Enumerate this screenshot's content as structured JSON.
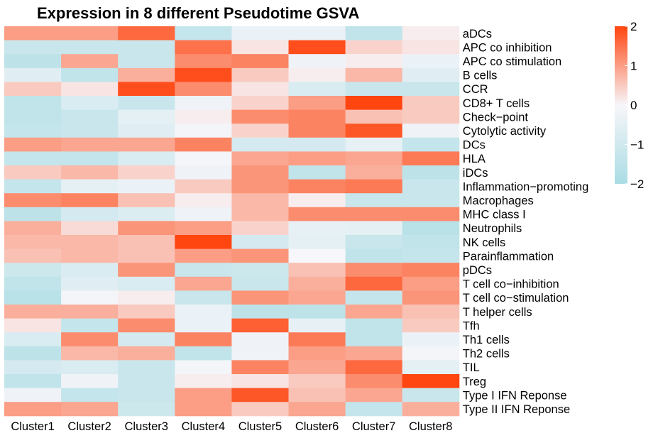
{
  "chart_data": {
    "type": "heatmap",
    "title": "Expression in 8 different Pseudotime GSVA",
    "columns": [
      "Cluster1",
      "Cluster2",
      "Cluster3",
      "Cluster4",
      "Cluster5",
      "Cluster6",
      "Cluster7",
      "Cluster8"
    ],
    "rows": [
      "aDCs",
      "APC co inhibition",
      "APC co stimulation",
      "B cells",
      "CCR",
      "CD8+ T cells",
      "Check−point",
      "Cytolytic activity",
      "DCs",
      "HLA",
      "iDCs",
      "Inflammation−promoting",
      "Macrophages",
      "MHC class I",
      "Neutrophils",
      "NK cells",
      "Parainflammation",
      "pDCs",
      "T cell co−inhibition",
      "T cell co−stimulation",
      "T helper cells",
      "Tfh",
      "Th1 cells",
      "Th2 cells",
      "TIL",
      "Treg",
      "Type I IFN Reponse",
      "Type II IFN Reponse"
    ],
    "values": [
      [
        1.0,
        1.0,
        1.6,
        -1.3,
        -0.3,
        -0.3,
        -1.4,
        0.1
      ],
      [
        -1.2,
        -1.2,
        -1.2,
        1.5,
        0.2,
        1.9,
        0.4,
        0.2
      ],
      [
        -1.5,
        0.9,
        -1.2,
        1.2,
        1.3,
        -0.2,
        0.1,
        -0.3
      ],
      [
        -0.6,
        -1.4,
        0.8,
        1.9,
        0.5,
        0.1,
        0.7,
        -0.6
      ],
      [
        0.5,
        0.2,
        1.9,
        1.2,
        0.2,
        -0.8,
        -1.2,
        -1.2
      ],
      [
        -1.4,
        -0.8,
        -1.2,
        -0.2,
        0.4,
        1.0,
        2.0,
        0.5
      ],
      [
        -1.4,
        -1.2,
        -0.5,
        0.1,
        1.2,
        1.3,
        0.6,
        0.5
      ],
      [
        -1.3,
        -1.2,
        -0.6,
        -0.1,
        0.4,
        1.3,
        1.8,
        -0.2
      ],
      [
        1.0,
        0.9,
        0.9,
        1.3,
        -0.9,
        -0.9,
        -0.4,
        -1.3
      ],
      [
        -1.3,
        -1.3,
        -0.8,
        -0.1,
        0.9,
        1.0,
        0.9,
        1.4
      ],
      [
        0.5,
        0.7,
        0.4,
        -0.2,
        1.1,
        -1.4,
        0.8,
        -1.5
      ],
      [
        -1.3,
        -0.5,
        -0.3,
        0.5,
        1.1,
        1.3,
        1.4,
        -1.2
      ],
      [
        1.2,
        1.3,
        0.6,
        0.1,
        0.7,
        0.1,
        -1.2,
        -1.2
      ],
      [
        -1.5,
        -0.9,
        -0.7,
        -0.2,
        0.7,
        1.2,
        1.2,
        1.2
      ],
      [
        0.8,
        0.3,
        1.1,
        1.0,
        0.4,
        -0.4,
        -0.5,
        -1.6
      ],
      [
        0.7,
        0.7,
        0.6,
        2.0,
        -0.9,
        -0.5,
        -1.2,
        -1.4
      ],
      [
        0.6,
        0.7,
        0.6,
        1.0,
        1.1,
        0.0,
        -1.4,
        -1.3
      ],
      [
        -1.1,
        -0.8,
        1.1,
        -1.2,
        -1.1,
        0.6,
        1.2,
        1.3
      ],
      [
        -1.4,
        -0.6,
        -0.8,
        0.9,
        -1.2,
        0.8,
        1.6,
        1.0
      ],
      [
        -1.6,
        -0.1,
        0.1,
        -1.2,
        1.1,
        0.9,
        -1.3,
        1.1
      ],
      [
        0.8,
        0.8,
        0.5,
        -0.3,
        -1.5,
        -1.5,
        0.9,
        0.6
      ],
      [
        0.2,
        -1.3,
        1.2,
        -0.3,
        1.7,
        -0.4,
        -1.4,
        0.5
      ],
      [
        -0.8,
        1.2,
        -0.9,
        1.3,
        -0.2,
        1.4,
        -1.4,
        -0.3
      ],
      [
        -1.5,
        0.7,
        0.8,
        -1.4,
        -0.2,
        1.0,
        0.9,
        -0.1
      ],
      [
        -0.9,
        -0.8,
        -1.2,
        -0.1,
        1.3,
        0.9,
        1.6,
        -0.5
      ],
      [
        -1.4,
        -0.2,
        -1.2,
        0.1,
        0.2,
        0.5,
        1.2,
        2.0
      ],
      [
        -0.2,
        -1.3,
        -1.2,
        1.0,
        1.8,
        0.6,
        0.9,
        -1.2
      ],
      [
        1.0,
        0.9,
        -1.1,
        1.0,
        0.5,
        0.9,
        -1.3,
        0.8
      ]
    ],
    "legend": {
      "ticks": [
        2,
        1,
        0,
        -1,
        -2
      ],
      "tick_labels": [
        "2",
        "1",
        "0",
        "−1",
        "−2"
      ],
      "range": [
        -2,
        2
      ],
      "position": "top-right"
    },
    "colors": {
      "low": "#A9DCE3",
      "mid": "#F7F6FA",
      "high": "#FF4510"
    },
    "grid": false
  }
}
